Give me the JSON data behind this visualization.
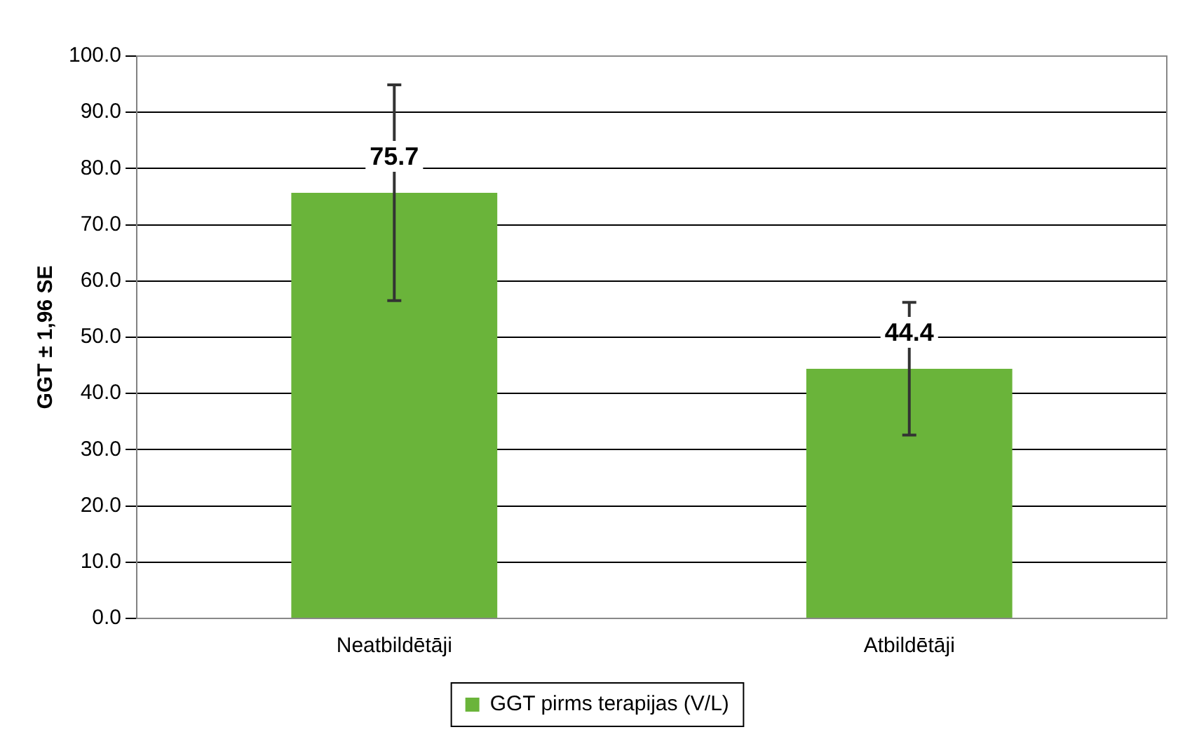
{
  "chart_data": {
    "type": "bar",
    "ylabel": "GGT ± 1,96 SE",
    "categories": [
      "Neatbildētāji",
      "Atbildētāji"
    ],
    "series": [
      {
        "name": "GGT pirms terapijas (V/L)",
        "color": "#6ab43a",
        "values": [
          75.7,
          44.4
        ],
        "errors": [
          19.2,
          11.8
        ]
      }
    ],
    "ylim": [
      0,
      100
    ],
    "yticks": [
      {
        "value": 0,
        "label": "0.0"
      },
      {
        "value": 10,
        "label": "10.0"
      },
      {
        "value": 20,
        "label": "20.0"
      },
      {
        "value": 30,
        "label": "30.0"
      },
      {
        "value": 40,
        "label": "40.0"
      },
      {
        "value": 50,
        "label": "50.0"
      },
      {
        "value": 60,
        "label": "60.0"
      },
      {
        "value": 70,
        "label": "70.0"
      },
      {
        "value": 80,
        "label": "80.0"
      },
      {
        "value": 90,
        "label": "90.0"
      },
      {
        "value": 100,
        "label": "100.0"
      }
    ],
    "grid": "y",
    "legend": "bottom",
    "data_labels": true
  }
}
